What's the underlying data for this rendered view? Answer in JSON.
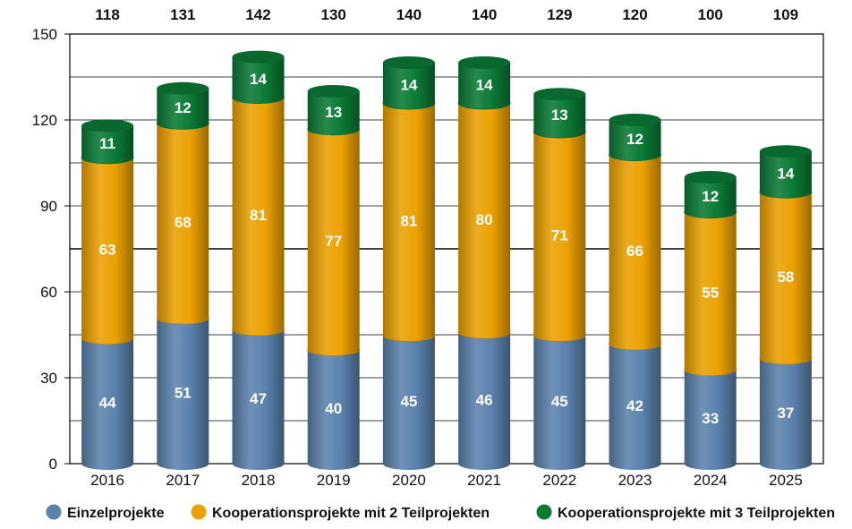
{
  "chart_data": {
    "type": "bar",
    "stacked": true,
    "categories": [
      "2016",
      "2017",
      "2018",
      "2019",
      "2020",
      "2021",
      "2022",
      "2023",
      "2024",
      "2025"
    ],
    "series": [
      {
        "name": "Einzelprojekte",
        "color": "#5b82ad",
        "values": [
          44,
          51,
          47,
          40,
          45,
          46,
          45,
          42,
          33,
          37
        ]
      },
      {
        "name": "Kooperationsprojekte mit 2 Teilprojekten",
        "color": "#eba100",
        "values": [
          63,
          68,
          81,
          77,
          81,
          80,
          71,
          66,
          55,
          58
        ]
      },
      {
        "name": "Kooperationsprojekte mit 3 Teilprojekten",
        "color": "#0a7a35",
        "values": [
          11,
          12,
          14,
          13,
          14,
          14,
          13,
          12,
          12,
          14
        ]
      }
    ],
    "totals": [
      118,
      131,
      142,
      130,
      140,
      140,
      129,
      120,
      100,
      109
    ],
    "y_ticks": [
      0,
      30,
      60,
      90,
      120,
      150
    ],
    "ylim": [
      0,
      150
    ],
    "grid": true,
    "minor_grid_step": 15,
    "legend_position": "bottom",
    "title": "",
    "xlabel": "",
    "ylabel": ""
  }
}
